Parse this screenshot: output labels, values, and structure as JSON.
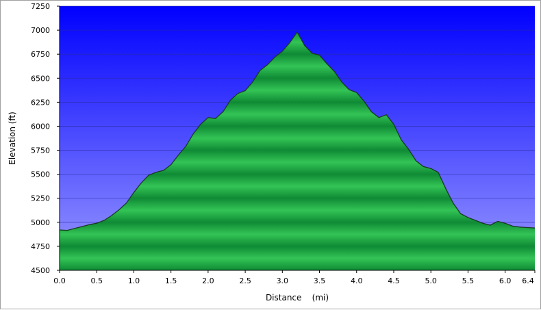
{
  "chart_data": {
    "type": "area",
    "xlabel": "Distance    (mi)",
    "ylabel": "Elevation (ft)",
    "xlim": [
      0,
      6.4
    ],
    "ylim": [
      4500,
      7250
    ],
    "x_ticks": [
      "0.0",
      "0.5",
      "1.0",
      "1.5",
      "2.0",
      "2.5",
      "3.0",
      "3.5",
      "4.0",
      "4.5",
      "5.0",
      "5.5",
      "6.0",
      "6.4"
    ],
    "y_ticks": [
      "4500",
      "4750",
      "5000",
      "5250",
      "5500",
      "5750",
      "6000",
      "6250",
      "6500",
      "6750",
      "7000",
      "7250"
    ],
    "grid": true,
    "colors": {
      "background_top": "#0000ff",
      "background_bottom": "#9a9aff",
      "fill_light": "#33c455",
      "fill_dark": "#0f8a35",
      "outline": "#1a3a22",
      "gridline": "#2a2aa0"
    },
    "series": [
      {
        "x": [
          0.0,
          0.1,
          0.2,
          0.3,
          0.4,
          0.5,
          0.6,
          0.7,
          0.8,
          0.9,
          1.0,
          1.1,
          1.2,
          1.3,
          1.4,
          1.5,
          1.6,
          1.7,
          1.8,
          1.9,
          2.0,
          2.1,
          2.2,
          2.3,
          2.4,
          2.5,
          2.6,
          2.7,
          2.8,
          2.9,
          3.0,
          3.1,
          3.2,
          3.3,
          3.4,
          3.5,
          3.6,
          3.7,
          3.8,
          3.9,
          4.0,
          4.1,
          4.2,
          4.3,
          4.4,
          4.5,
          4.6,
          4.7,
          4.8,
          4.9,
          5.0,
          5.1,
          5.2,
          5.3,
          5.4,
          5.5,
          5.6,
          5.7,
          5.8,
          5.9,
          6.0,
          6.1,
          6.2,
          6.3,
          6.4
        ],
        "y": [
          4920,
          4915,
          4935,
          4955,
          4975,
          4990,
          5020,
          5070,
          5130,
          5200,
          5310,
          5410,
          5490,
          5520,
          5540,
          5600,
          5700,
          5790,
          5920,
          6020,
          6090,
          6080,
          6150,
          6270,
          6340,
          6370,
          6460,
          6580,
          6640,
          6720,
          6780,
          6870,
          6980,
          6840,
          6760,
          6740,
          6650,
          6570,
          6460,
          6380,
          6350,
          6260,
          6150,
          6090,
          6120,
          6020,
          5860,
          5760,
          5640,
          5580,
          5560,
          5520,
          5350,
          5200,
          5090,
          5050,
          5020,
          4990,
          4970,
          5010,
          4990,
          4960,
          4950,
          4945,
          4940
        ]
      }
    ]
  }
}
